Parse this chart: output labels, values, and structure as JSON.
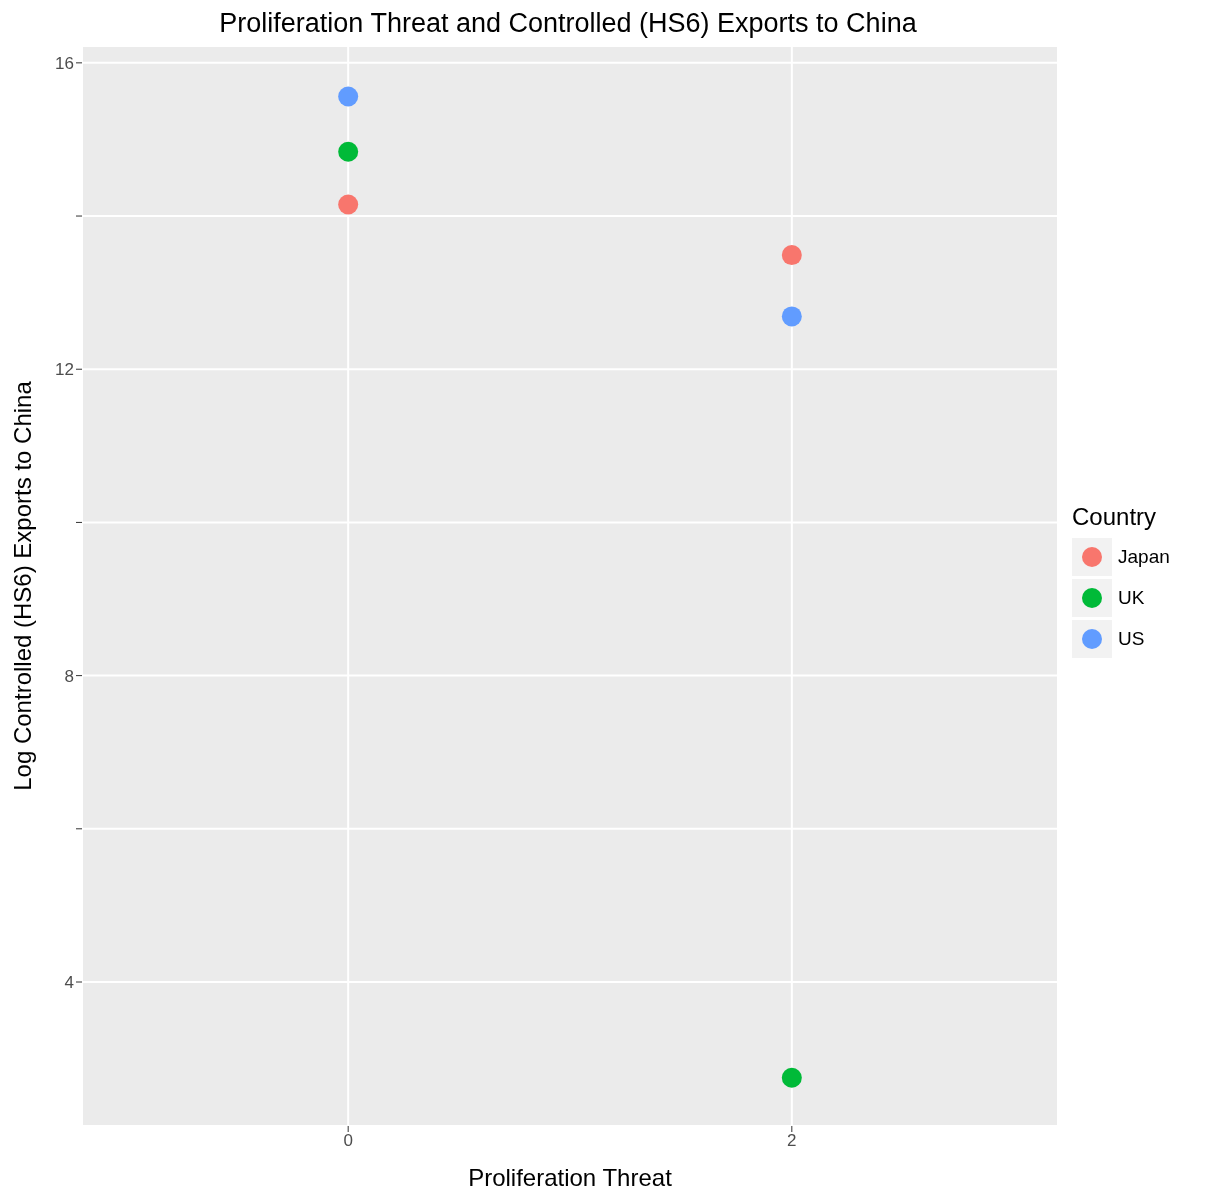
{
  "chart_data": {
    "type": "scatter",
    "title": "Proliferation Threat and Controlled (HS6) Exports to China",
    "xlabel": "Proliferation Threat",
    "ylabel": "Log Controlled (HS6) Exports to China",
    "legend_title": "Country",
    "legend": "right",
    "grid": true,
    "marker": "circle",
    "xlim": [
      -1.2,
      3.2
    ],
    "xticks": [
      0,
      2
    ],
    "ylim": [
      2.12,
      16.22
    ],
    "yticks": [
      4,
      {
        "value": 6,
        "label": null
      },
      8,
      {
        "value": 10,
        "label": null
      },
      12,
      {
        "value": 14,
        "label": null
      },
      16
    ],
    "x": [
      0,
      2
    ],
    "series": [
      {
        "name": "Japan",
        "color": "#f8766d",
        "values": [
          14.15,
          13.49
        ]
      },
      {
        "name": "UK",
        "color": "#00ba38",
        "values": [
          14.84,
          2.75
        ]
      },
      {
        "name": "US",
        "color": "#619cff",
        "values": [
          15.56,
          12.69
        ]
      }
    ]
  }
}
